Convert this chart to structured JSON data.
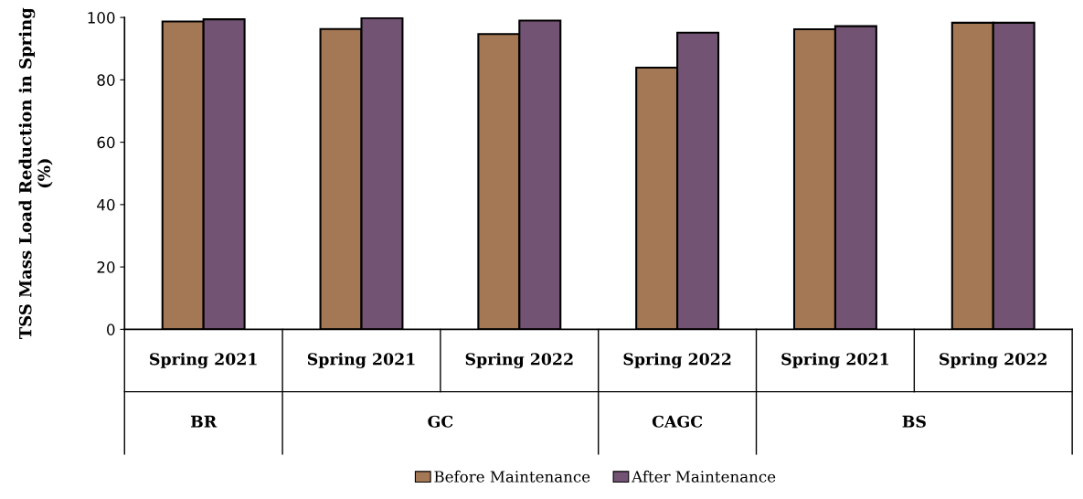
{
  "chart_data": {
    "type": "bar",
    "ylabel": "TSS Mass Load Reduction in Spring (%)",
    "categories": [
      "Spring 2021",
      "Spring 2021",
      "Spring 2022",
      "Spring 2022",
      "Spring 2021",
      "Spring 2022"
    ],
    "series": [
      {
        "name": "Before Maintenance",
        "color": "#a57855",
        "values": [
          98.7,
          96.3,
          94.7,
          83.9,
          96.2,
          98.3
        ]
      },
      {
        "name": "After Maintenance",
        "color": "#725373",
        "values": [
          99.4,
          99.8,
          99.0,
          95.1,
          97.2,
          98.3
        ]
      }
    ],
    "annotations": [
      "BR",
      "GC",
      "CAGC",
      "BS"
    ],
    "ylim": [
      0,
      100
    ],
    "yticks": [
      0,
      20,
      40,
      60,
      80,
      100
    ],
    "grid": false,
    "legend": "bottom"
  }
}
